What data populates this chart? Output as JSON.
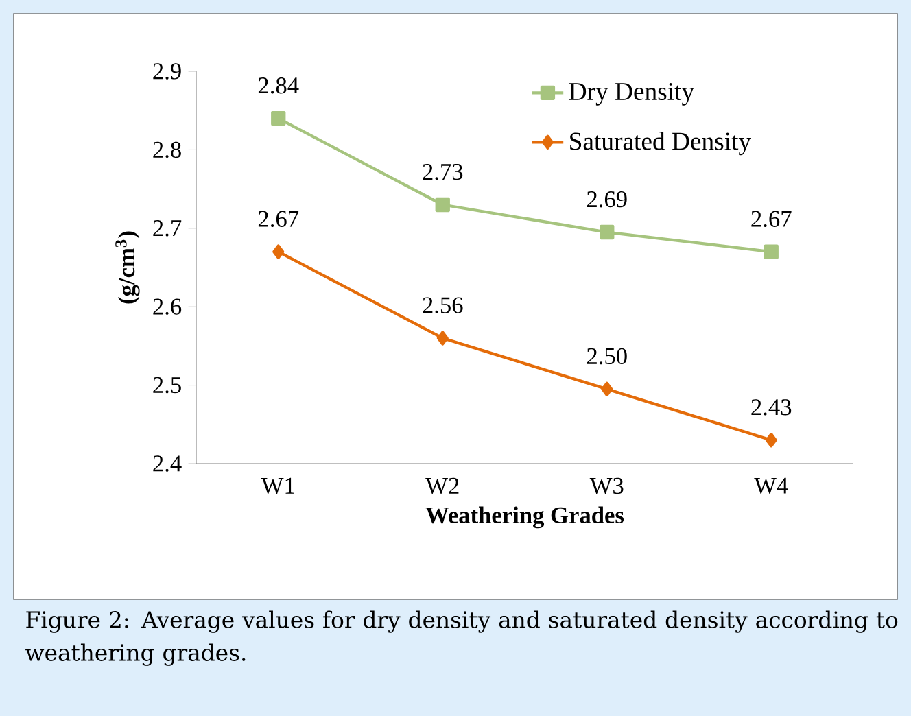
{
  "chart_data": {
    "type": "line",
    "xlabel": "Weathering  Grades",
    "ylabel": "(g/cm$^{3}$)",
    "categories": [
      "W1",
      "W2",
      "W3",
      "W4"
    ],
    "series": [
      {
        "name": "Dry Density",
        "color": "#a6c47e",
        "marker": "square",
        "values": [
          2.84,
          2.73,
          2.695,
          2.67
        ],
        "value_labels": [
          "2.84",
          "2.73",
          "2.69",
          "2.67"
        ]
      },
      {
        "name": "Saturated Density",
        "color": "#e46c0a",
        "marker": "diamond",
        "values": [
          2.67,
          2.56,
          2.495,
          2.43
        ],
        "value_labels": [
          "2.67",
          "2.56",
          "2.50",
          "2.43"
        ]
      }
    ],
    "ylim": [
      2.4,
      2.9
    ],
    "yticks": [
      2.4,
      2.5,
      2.6,
      2.7,
      2.8,
      2.9
    ],
    "legend": "top right",
    "grid": false,
    "annotations": [
      "Figure 2: Average values for dry density and saturated density according to weathering grades."
    ]
  }
}
